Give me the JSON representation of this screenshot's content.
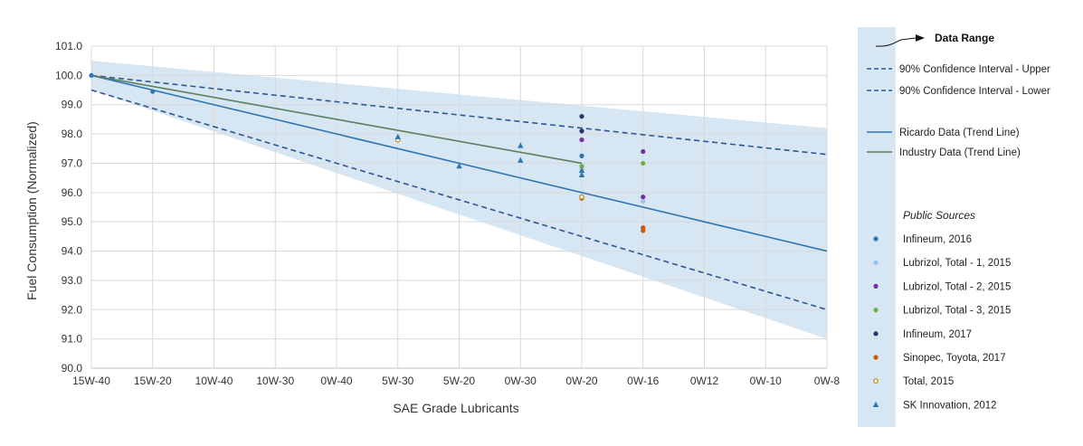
{
  "chart_data": {
    "type": "scatter",
    "xlabel": "SAE Grade Lubricants",
    "ylabel": "Fuel Consumption (Normalized)",
    "categories": [
      "15W-40",
      "15W-20",
      "10W-40",
      "10W-30",
      "0W-40",
      "5W-30",
      "5W-20",
      "0W-30",
      "0W-20",
      "0W-16",
      "0W12",
      "0W-10",
      "0W-8"
    ],
    "ylim": [
      90.0,
      101.0
    ],
    "yticks": [
      "90.0",
      "91.0",
      "92.0",
      "93.0",
      "94.0",
      "95.0",
      "96.0",
      "97.0",
      "98.0",
      "99.0",
      "100.0",
      "101.0"
    ],
    "grid": true,
    "legend_position": "right",
    "data_range": {
      "name": "Data Range",
      "color": "#d6e6f2",
      "upper": [
        [
          0,
          100.5
        ],
        [
          12,
          98.2
        ]
      ],
      "lower": [
        [
          0,
          99.5
        ],
        [
          12,
          91.0
        ]
      ]
    },
    "lines": [
      {
        "name": "90% Confidence Interval - Upper",
        "style": "dashed",
        "color": "#2f5597",
        "points": [
          [
            0,
            100.0
          ],
          [
            12,
            97.3
          ]
        ]
      },
      {
        "name": "90% Confidence Interval - Lower",
        "style": "dashed",
        "color": "#2f5597",
        "points": [
          [
            0,
            99.5
          ],
          [
            12,
            92.0
          ]
        ]
      },
      {
        "name": "Ricardo Data (Trend Line)",
        "style": "solid",
        "color": "#2e75b6",
        "points": [
          [
            0,
            100.0
          ],
          [
            12,
            94.0
          ]
        ]
      },
      {
        "name": "Industry Data (Trend Line)",
        "style": "solid",
        "color": "#5b7f5f",
        "points": [
          [
            0,
            100.0
          ],
          [
            8,
            97.0
          ]
        ]
      }
    ],
    "public_sources_title": "Public Sources",
    "series": [
      {
        "name": "Infineum, 2016",
        "marker": "circle",
        "color": "#2e75b6",
        "points": [
          [
            0,
            100.0
          ],
          [
            1,
            99.45
          ],
          [
            8,
            97.25
          ]
        ]
      },
      {
        "name": "Lubrizol, Total - 1, 2015",
        "marker": "circle",
        "color": "#9dc3e6",
        "points": [
          [
            8,
            96.8
          ],
          [
            9,
            95.7
          ]
        ]
      },
      {
        "name": "Lubrizol, Total - 2, 2015",
        "marker": "circle",
        "color": "#7030a0",
        "points": [
          [
            8,
            97.8
          ],
          [
            9,
            97.4
          ],
          [
            9,
            95.85
          ]
        ]
      },
      {
        "name": "Lubrizol, Total - 3, 2015",
        "marker": "circle",
        "color": "#70ad47",
        "points": [
          [
            8,
            96.9
          ],
          [
            9,
            97.0
          ]
        ]
      },
      {
        "name": "Infineum, 2017",
        "marker": "circle",
        "color": "#1f3864",
        "points": [
          [
            8,
            98.6
          ],
          [
            8,
            98.1
          ]
        ]
      },
      {
        "name": "Sinopec, Toyota, 2017",
        "marker": "circle",
        "color": "#c55a11",
        "points": [
          [
            8,
            95.8
          ],
          [
            9,
            94.8
          ],
          [
            9,
            94.7
          ]
        ]
      },
      {
        "name": "Total, 2015",
        "marker": "open-circle",
        "color": "#bf8f00",
        "points": [
          [
            5,
            97.8
          ],
          [
            8,
            95.85
          ]
        ]
      },
      {
        "name": "SK Innovation, 2012",
        "marker": "triangle",
        "color": "#2e75b6",
        "points": [
          [
            5,
            97.9
          ],
          [
            6,
            96.9
          ],
          [
            7,
            97.6
          ],
          [
            7,
            97.1
          ],
          [
            8,
            96.75
          ],
          [
            8,
            96.6
          ]
        ]
      }
    ]
  }
}
